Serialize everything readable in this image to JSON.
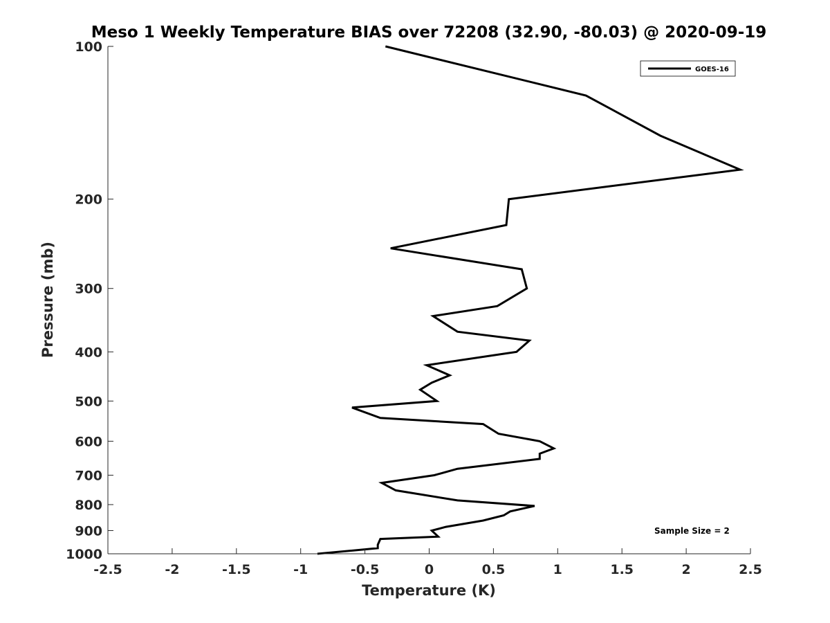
{
  "chart_data": {
    "type": "line",
    "title": "Meso 1 Weekly Temperature BIAS over 72208 (32.90, -80.03) @ 2020-09-19",
    "xlabel": "Temperature (K)",
    "ylabel": "Pressure (mb)",
    "xlim": [
      -2.5,
      2.5
    ],
    "ylim": [
      100,
      1000
    ],
    "y_scale": "log",
    "y_reversed": true,
    "x_ticks": [
      "-2.5",
      "-2",
      "-1.5",
      "-1",
      "-0.5",
      "0",
      "0.5",
      "1",
      "1.5",
      "2",
      "2.5"
    ],
    "y_ticks": [
      "100",
      "200",
      "300",
      "400",
      "500",
      "600",
      "700",
      "800",
      "900",
      "1000"
    ],
    "grid": false,
    "legend_position": "top-right",
    "annotation": "Sample Size = 2",
    "series": [
      {
        "name": "GOES-16",
        "color": "#000000",
        "points": [
          {
            "x": -0.34,
            "y": 100
          },
          {
            "x": 1.22,
            "y": 125
          },
          {
            "x": 1.8,
            "y": 150
          },
          {
            "x": 2.42,
            "y": 175
          },
          {
            "x": 0.62,
            "y": 200
          },
          {
            "x": 0.6,
            "y": 225
          },
          {
            "x": -0.3,
            "y": 250
          },
          {
            "x": 0.72,
            "y": 275
          },
          {
            "x": 0.76,
            "y": 300
          },
          {
            "x": 0.53,
            "y": 325
          },
          {
            "x": 0.03,
            "y": 340
          },
          {
            "x": 0.22,
            "y": 365
          },
          {
            "x": 0.78,
            "y": 380
          },
          {
            "x": 0.68,
            "y": 400
          },
          {
            "x": -0.02,
            "y": 425
          },
          {
            "x": 0.16,
            "y": 445
          },
          {
            "x": 0.02,
            "y": 460
          },
          {
            "x": -0.07,
            "y": 475
          },
          {
            "x": 0.06,
            "y": 500
          },
          {
            "x": -0.6,
            "y": 515
          },
          {
            "x": -0.38,
            "y": 540
          },
          {
            "x": 0.42,
            "y": 555
          },
          {
            "x": 0.54,
            "y": 580
          },
          {
            "x": 0.86,
            "y": 600
          },
          {
            "x": 0.97,
            "y": 620
          },
          {
            "x": 0.86,
            "y": 635
          },
          {
            "x": 0.86,
            "y": 650
          },
          {
            "x": 0.22,
            "y": 680
          },
          {
            "x": 0.04,
            "y": 700
          },
          {
            "x": -0.37,
            "y": 725
          },
          {
            "x": -0.26,
            "y": 750
          },
          {
            "x": 0.22,
            "y": 785
          },
          {
            "x": 0.82,
            "y": 805
          },
          {
            "x": 0.63,
            "y": 825
          },
          {
            "x": 0.58,
            "y": 840
          },
          {
            "x": 0.42,
            "y": 860
          },
          {
            "x": 0.13,
            "y": 885
          },
          {
            "x": 0.02,
            "y": 900
          },
          {
            "x": 0.07,
            "y": 925
          },
          {
            "x": -0.38,
            "y": 935
          },
          {
            "x": -0.4,
            "y": 960
          },
          {
            "x": -0.4,
            "y": 975
          },
          {
            "x": -0.87,
            "y": 1000
          }
        ]
      }
    ]
  }
}
